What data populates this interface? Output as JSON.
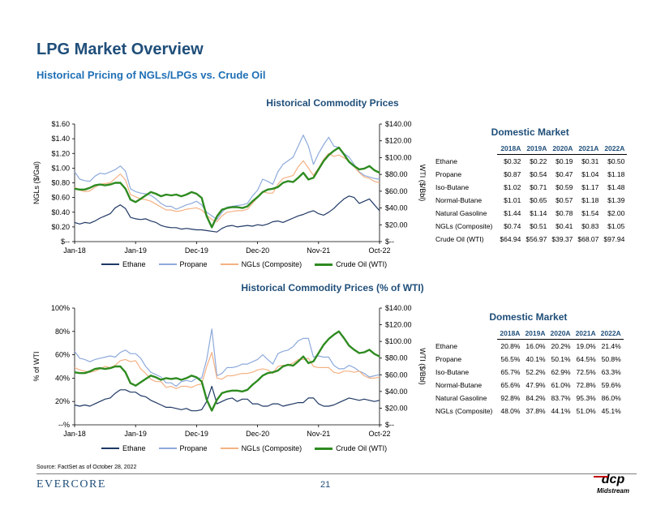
{
  "page": {
    "title": "LPG Market Overview",
    "subtitle": "Historical Pricing of NGLs/LPGs vs. Crude Oil",
    "source": "Source: FactSet as of October 28, 2022",
    "brand": "Evercore",
    "page_number": "21",
    "logo_text": "Midstream",
    "logo_mark": "dcp"
  },
  "chart_data": [
    {
      "type": "line",
      "title": "Historical Commodity Prices",
      "xlabel": "",
      "ylabel": "NGLs ($/Gal)",
      "y2label": "WTI ($/Bbl)",
      "x_ticks": [
        "Jan-18",
        "Jan-19",
        "Dec-19",
        "Dec-20",
        "Nov-21",
        "Oct-22"
      ],
      "y_ticks": [
        "$--",
        "$0.20",
        "$0.40",
        "$0.60",
        "$0.80",
        "$1.00",
        "$1.20",
        "$1.40",
        "$1.60"
      ],
      "y2_ticks": [
        "$--",
        "$20.00",
        "$40.00",
        "$60.00",
        "$80.00",
        "$100.00",
        "$120.00",
        "$140.00"
      ],
      "ylim": [
        0,
        1.6
      ],
      "y2lim": [
        0,
        140
      ],
      "legend_position": "bottom",
      "series": [
        {
          "name": "Ethane",
          "color": "#1F3864",
          "axis": "left",
          "width": 1.2,
          "values": [
            0.26,
            0.24,
            0.26,
            0.25,
            0.28,
            0.32,
            0.35,
            0.38,
            0.46,
            0.5,
            0.45,
            0.33,
            0.31,
            0.3,
            0.31,
            0.28,
            0.26,
            0.22,
            0.2,
            0.19,
            0.19,
            0.17,
            0.18,
            0.17,
            0.16,
            0.16,
            0.15,
            0.14,
            0.13,
            0.18,
            0.21,
            0.22,
            0.2,
            0.21,
            0.22,
            0.21,
            0.23,
            0.22,
            0.24,
            0.27,
            0.28,
            0.26,
            0.29,
            0.32,
            0.35,
            0.37,
            0.4,
            0.42,
            0.38,
            0.36,
            0.4,
            0.45,
            0.52,
            0.58,
            0.62,
            0.6,
            0.52,
            0.55,
            0.58,
            0.5,
            0.42
          ]
        },
        {
          "name": "Propane",
          "color": "#8EAADB",
          "axis": "left",
          "width": 1.2,
          "values": [
            0.95,
            0.85,
            0.83,
            0.82,
            0.89,
            0.93,
            0.92,
            0.95,
            0.98,
            1.03,
            0.96,
            0.72,
            0.68,
            0.66,
            0.65,
            0.63,
            0.58,
            0.52,
            0.48,
            0.48,
            0.44,
            0.47,
            0.5,
            0.52,
            0.55,
            0.5,
            0.4,
            0.35,
            0.3,
            0.4,
            0.47,
            0.48,
            0.49,
            0.5,
            0.52,
            0.62,
            0.7,
            0.85,
            0.82,
            0.78,
            0.95,
            1.05,
            1.1,
            1.15,
            1.3,
            1.45,
            1.3,
            1.05,
            1.2,
            1.32,
            1.42,
            1.3,
            1.28,
            1.2,
            1.15,
            1.05,
            0.95,
            0.9,
            0.88,
            0.86,
            0.85
          ]
        },
        {
          "name": "NGLs (Composite)",
          "color": "#F4B183",
          "axis": "left",
          "width": 1.2,
          "values": [
            0.74,
            0.7,
            0.68,
            0.69,
            0.74,
            0.78,
            0.79,
            0.8,
            0.86,
            0.92,
            0.84,
            0.64,
            0.61,
            0.58,
            0.57,
            0.55,
            0.51,
            0.47,
            0.43,
            0.43,
            0.41,
            0.42,
            0.44,
            0.45,
            0.46,
            0.43,
            0.36,
            0.3,
            0.27,
            0.35,
            0.4,
            0.41,
            0.42,
            0.42,
            0.44,
            0.52,
            0.6,
            0.68,
            0.66,
            0.66,
            0.78,
            0.86,
            0.88,
            0.9,
            1.02,
            1.1,
            1.0,
            0.9,
            1.0,
            1.12,
            1.2,
            1.16,
            1.18,
            1.14,
            1.1,
            1.02,
            0.94,
            0.88,
            0.86,
            0.82,
            0.8
          ]
        },
        {
          "name": "Crude Oil (WTI)",
          "color": "#2E8B20",
          "axis": "right",
          "width": 2.4,
          "values": [
            63,
            62,
            62,
            64,
            67,
            68,
            67,
            68,
            70,
            70,
            63,
            50,
            47,
            51,
            55,
            59,
            57,
            54,
            56,
            55,
            56,
            54,
            56,
            59,
            57,
            52,
            30,
            17,
            30,
            38,
            40,
            41,
            41,
            40,
            42,
            48,
            53,
            59,
            62,
            63,
            65,
            70,
            72,
            71,
            76,
            82,
            74,
            76,
            86,
            96,
            103,
            108,
            112,
            104,
            95,
            90,
            86,
            87,
            90,
            85,
            82
          ]
        }
      ]
    },
    {
      "type": "line",
      "title": "Historical Commodity Prices (% of WTI)",
      "xlabel": "",
      "ylabel": "% of WTI",
      "y2label": "WTI ($/Bbl)",
      "x_ticks": [
        "Jan-18",
        "Jan-19",
        "Dec-19",
        "Dec-20",
        "Nov-21",
        "Oct-22"
      ],
      "y_ticks": [
        "--%",
        "20%",
        "40%",
        "60%",
        "80%",
        "100%"
      ],
      "y2_ticks": [
        "$--",
        "$20.00",
        "$40.00",
        "$60.00",
        "$80.00",
        "$100.00",
        "$120.00",
        "$140.00"
      ],
      "ylim": [
        0,
        100
      ],
      "y2lim": [
        0,
        140
      ],
      "legend_position": "bottom",
      "series": [
        {
          "name": "Ethane",
          "color": "#1F3864",
          "axis": "left",
          "width": 1.2,
          "values": [
            17,
            16,
            17,
            16,
            18,
            20,
            22,
            23,
            27,
            30,
            30,
            28,
            28,
            25,
            24,
            21,
            19,
            17,
            15,
            15,
            14,
            13,
            14,
            12,
            12,
            13,
            20,
            33,
            18,
            20,
            22,
            23,
            20,
            22,
            22,
            18,
            18,
            16,
            16,
            18,
            18,
            16,
            17,
            18,
            19,
            19,
            23,
            23,
            18,
            16,
            16,
            17,
            19,
            21,
            23,
            22,
            21,
            22,
            21,
            20,
            21
          ]
        },
        {
          "name": "Propane",
          "color": "#8EAADB",
          "axis": "left",
          "width": 1.2,
          "values": [
            63,
            57,
            56,
            54,
            56,
            57,
            58,
            59,
            58,
            62,
            64,
            61,
            61,
            57,
            50,
            45,
            43,
            41,
            36,
            36,
            33,
            37,
            38,
            37,
            40,
            40,
            56,
            82,
            42,
            44,
            49,
            49,
            50,
            52,
            52,
            54,
            56,
            60,
            56,
            52,
            61,
            63,
            64,
            67,
            72,
            74,
            74,
            58,
            59,
            58,
            58,
            51,
            48,
            48,
            51,
            49,
            46,
            44,
            41,
            42,
            43
          ]
        },
        {
          "name": "NGLs (Composite)",
          "color": "#F4B183",
          "axis": "left",
          "width": 1.2,
          "values": [
            49,
            47,
            46,
            45,
            46,
            48,
            50,
            49,
            51,
            55,
            56,
            54,
            55,
            48,
            44,
            39,
            37,
            37,
            32,
            33,
            31,
            33,
            33,
            32,
            34,
            35,
            50,
            62,
            40,
            39,
            42,
            42,
            43,
            44,
            44,
            45,
            47,
            48,
            47,
            44,
            50,
            51,
            51,
            53,
            56,
            56,
            57,
            50,
            49,
            49,
            49,
            45,
            44,
            46,
            46,
            45,
            46,
            42,
            40,
            40,
            41
          ]
        },
        {
          "name": "Crude Oil (WTI)",
          "color": "#2E8B20",
          "axis": "right",
          "width": 2.4,
          "values": [
            63,
            62,
            62,
            64,
            67,
            68,
            67,
            68,
            70,
            70,
            63,
            50,
            47,
            51,
            55,
            59,
            57,
            54,
            56,
            55,
            56,
            54,
            56,
            59,
            57,
            52,
            30,
            17,
            30,
            38,
            40,
            41,
            41,
            40,
            42,
            48,
            53,
            59,
            62,
            63,
            65,
            70,
            72,
            71,
            76,
            82,
            74,
            76,
            86,
            96,
            103,
            108,
            112,
            104,
            95,
            90,
            86,
            87,
            90,
            85,
            82
          ]
        }
      ]
    }
  ],
  "tables": [
    {
      "title": "Domestic Market",
      "columns": [
        "",
        "2018A",
        "2019A",
        "2020A",
        "2021A",
        "2022A"
      ],
      "rows": [
        [
          "Ethane",
          "$0.32",
          "$0.22",
          "$0.19",
          "$0.31",
          "$0.50"
        ],
        [
          "Propane",
          "$0.87",
          "$0.54",
          "$0.47",
          "$1.04",
          "$1.18"
        ],
        [
          "Iso-Butane",
          "$1.02",
          "$0.71",
          "$0.59",
          "$1.17",
          "$1.48"
        ],
        [
          "Normal-Butane",
          "$1.01",
          "$0.65",
          "$0.57",
          "$1.18",
          "$1.39"
        ],
        [
          "Natural Gasoline",
          "$1.44",
          "$1.14",
          "$0.78",
          "$1.54",
          "$2.00"
        ],
        [
          "NGLs (Composite)",
          "$0.74",
          "$0.51",
          "$0.41",
          "$0.83",
          "$1.05"
        ],
        [
          "Crude Oil (WTI)",
          "$64.94",
          "$56.97",
          "$39.37",
          "$68.07",
          "$97.94"
        ]
      ]
    },
    {
      "title": "Domestic Market",
      "columns": [
        "",
        "2018A",
        "2019A",
        "2020A",
        "2021A",
        "2022A"
      ],
      "rows": [
        [
          "Ethane",
          "20.8%",
          "16.0%",
          "20.2%",
          "19.0%",
          "21.4%"
        ],
        [
          "Propane",
          "56.5%",
          "40.1%",
          "50.1%",
          "64.5%",
          "50.8%"
        ],
        [
          "Iso-Butane",
          "65.7%",
          "52.2%",
          "62.9%",
          "72.5%",
          "63.3%"
        ],
        [
          "Normal-Butane",
          "65.6%",
          "47.9%",
          "61.0%",
          "72.8%",
          "59.6%"
        ],
        [
          "Natural Gasoline",
          "92.8%",
          "84.2%",
          "83.7%",
          "95.3%",
          "86.0%"
        ],
        [
          "NGLs (Composite)",
          "48.0%",
          "37.8%",
          "44.1%",
          "51.0%",
          "45.1%"
        ]
      ]
    }
  ]
}
